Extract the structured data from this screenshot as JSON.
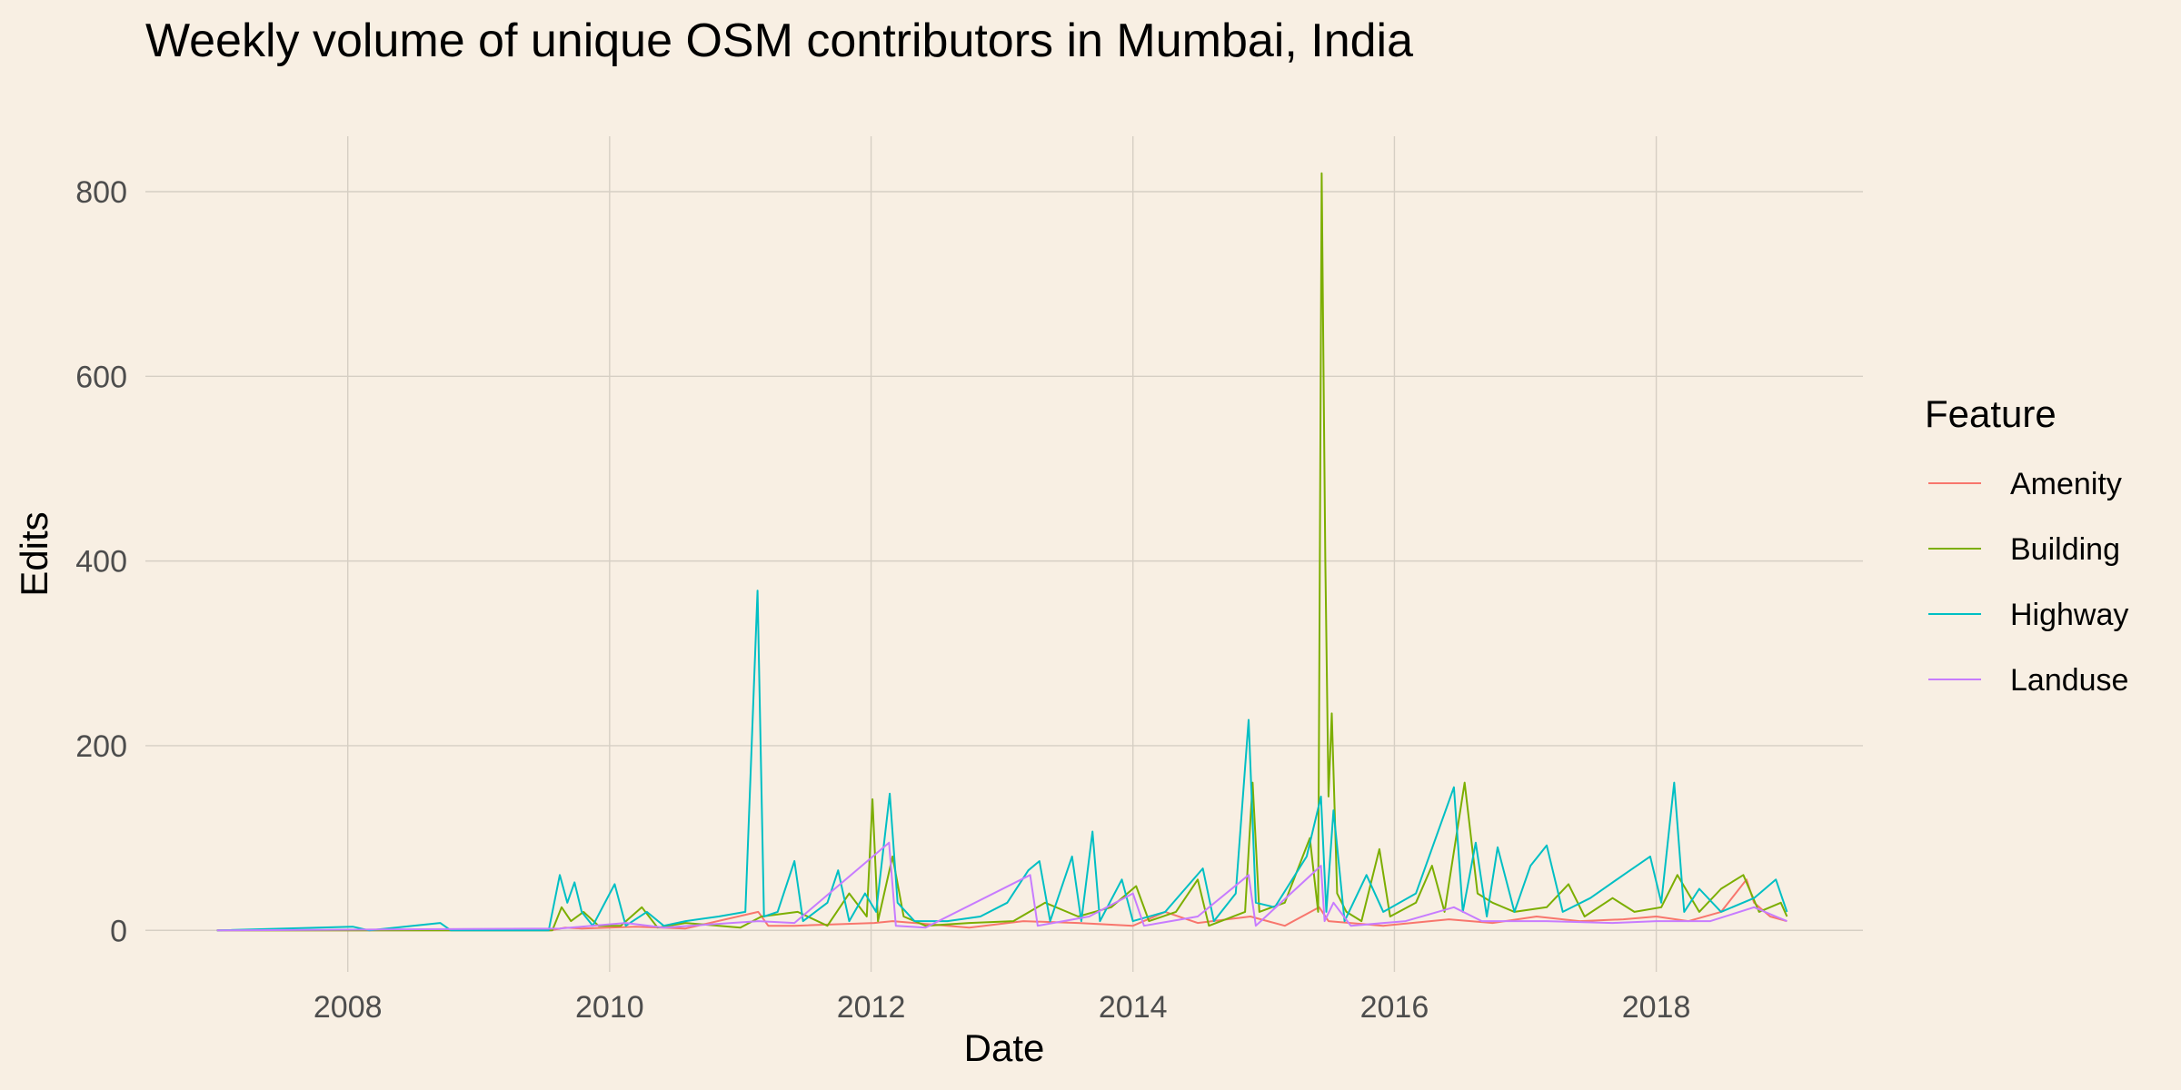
{
  "chart_data": {
    "type": "line",
    "title": "Weekly volume of unique OSM contributors in Mumbai, India",
    "xlabel": "Date",
    "ylabel": "Edits",
    "xlim": [
      "2006-06-15",
      "2019-08-01"
    ],
    "ylim": [
      -45,
      860
    ],
    "x_ticks": [
      "2008-01-01",
      "2010-01-01",
      "2012-01-01",
      "2014-01-01",
      "2016-01-01",
      "2018-01-01"
    ],
    "x_tick_labels": [
      "2008",
      "2010",
      "2012",
      "2014",
      "2016",
      "2018"
    ],
    "y_ticks": [
      0,
      200,
      400,
      600,
      800
    ],
    "grid": true,
    "legend": {
      "title": "Feature",
      "position": "right"
    },
    "series": [
      {
        "name": "Amenity",
        "color": "#F8766D",
        "points": [
          [
            "2007-01-01",
            0
          ],
          [
            "2009-07-20",
            0
          ],
          [
            "2009-08-30",
            3
          ],
          [
            "2009-10-15",
            2
          ],
          [
            "2010-03-15",
            4
          ],
          [
            "2010-08-01",
            2
          ],
          [
            "2011-02-20",
            20
          ],
          [
            "2011-03-20",
            5
          ],
          [
            "2011-06-01",
            5
          ],
          [
            "2012-01-10",
            8
          ],
          [
            "2012-03-01",
            10
          ],
          [
            "2012-10-01",
            3
          ],
          [
            "2013-03-01",
            10
          ],
          [
            "2013-08-01",
            8
          ],
          [
            "2014-01-01",
            5
          ],
          [
            "2014-04-01",
            20
          ],
          [
            "2014-07-01",
            8
          ],
          [
            "2014-11-25",
            15
          ],
          [
            "2015-03-01",
            5
          ],
          [
            "2015-06-05",
            25
          ],
          [
            "2015-07-01",
            10
          ],
          [
            "2015-12-01",
            5
          ],
          [
            "2016-06-01",
            12
          ],
          [
            "2016-10-01",
            8
          ],
          [
            "2017-02-01",
            15
          ],
          [
            "2017-06-01",
            10
          ],
          [
            "2017-10-01",
            12
          ],
          [
            "2018-01-01",
            15
          ],
          [
            "2018-04-01",
            10
          ],
          [
            "2018-07-01",
            20
          ],
          [
            "2018-09-10",
            55
          ],
          [
            "2018-10-01",
            30
          ],
          [
            "2018-11-15",
            15
          ],
          [
            "2019-01-01",
            10
          ]
        ]
      },
      {
        "name": "Building",
        "color": "#7CAE00",
        "points": [
          [
            "2007-01-01",
            0
          ],
          [
            "2009-07-25",
            0
          ],
          [
            "2009-08-20",
            25
          ],
          [
            "2009-09-15",
            10
          ],
          [
            "2009-10-20",
            20
          ],
          [
            "2009-12-01",
            5
          ],
          [
            "2010-02-01",
            5
          ],
          [
            "2010-04-01",
            25
          ],
          [
            "2010-05-15",
            3
          ],
          [
            "2010-08-01",
            8
          ],
          [
            "2011-01-01",
            3
          ],
          [
            "2011-03-01",
            15
          ],
          [
            "2011-06-10",
            20
          ],
          [
            "2011-09-01",
            5
          ],
          [
            "2011-11-01",
            40
          ],
          [
            "2011-12-20",
            15
          ],
          [
            "2012-01-05",
            142
          ],
          [
            "2012-01-20",
            10
          ],
          [
            "2012-03-01",
            80
          ],
          [
            "2012-04-01",
            15
          ],
          [
            "2012-06-01",
            5
          ],
          [
            "2012-10-01",
            8
          ],
          [
            "2013-02-01",
            10
          ],
          [
            "2013-05-01",
            30
          ],
          [
            "2013-08-01",
            15
          ],
          [
            "2013-11-01",
            25
          ],
          [
            "2014-01-10",
            48
          ],
          [
            "2014-02-15",
            10
          ],
          [
            "2014-05-01",
            20
          ],
          [
            "2014-07-01",
            55
          ],
          [
            "2014-08-01",
            5
          ],
          [
            "2014-11-10",
            20
          ],
          [
            "2014-12-01",
            160
          ],
          [
            "2014-12-20",
            20
          ],
          [
            "2015-03-01",
            30
          ],
          [
            "2015-05-10",
            100
          ],
          [
            "2015-06-02",
            20
          ],
          [
            "2015-06-12",
            820
          ],
          [
            "2015-06-22",
            400
          ],
          [
            "2015-07-01",
            145
          ],
          [
            "2015-07-10",
            235
          ],
          [
            "2015-07-25",
            40
          ],
          [
            "2015-08-20",
            20
          ],
          [
            "2015-10-01",
            10
          ],
          [
            "2015-11-20",
            88
          ],
          [
            "2015-12-20",
            15
          ],
          [
            "2016-03-01",
            30
          ],
          [
            "2016-04-15",
            70
          ],
          [
            "2016-05-20",
            20
          ],
          [
            "2016-07-15",
            160
          ],
          [
            "2016-08-20",
            40
          ],
          [
            "2016-10-01",
            30
          ],
          [
            "2016-12-01",
            20
          ],
          [
            "2017-03-01",
            25
          ],
          [
            "2017-05-01",
            50
          ],
          [
            "2017-06-15",
            15
          ],
          [
            "2017-09-01",
            35
          ],
          [
            "2017-11-01",
            20
          ],
          [
            "2018-01-15",
            25
          ],
          [
            "2018-03-01",
            60
          ],
          [
            "2018-05-01",
            20
          ],
          [
            "2018-07-01",
            45
          ],
          [
            "2018-09-01",
            60
          ],
          [
            "2018-10-15",
            20
          ],
          [
            "2018-12-15",
            30
          ],
          [
            "2019-01-01",
            15
          ]
        ]
      },
      {
        "name": "Highway",
        "color": "#00BFC4",
        "points": [
          [
            "2007-01-01",
            0
          ],
          [
            "2008-01-15",
            4
          ],
          [
            "2008-03-01",
            0
          ],
          [
            "2008-09-15",
            8
          ],
          [
            "2008-10-15",
            0
          ],
          [
            "2009-07-15",
            0
          ],
          [
            "2009-08-15",
            60
          ],
          [
            "2009-09-05",
            30
          ],
          [
            "2009-09-25",
            52
          ],
          [
            "2009-10-15",
            20
          ],
          [
            "2009-11-15",
            5
          ],
          [
            "2010-01-15",
            50
          ],
          [
            "2010-02-15",
            5
          ],
          [
            "2010-04-15",
            20
          ],
          [
            "2010-06-01",
            5
          ],
          [
            "2010-08-01",
            10
          ],
          [
            "2010-11-01",
            15
          ],
          [
            "2011-01-15",
            20
          ],
          [
            "2011-02-18",
            368
          ],
          [
            "2011-03-08",
            15
          ],
          [
            "2011-04-15",
            20
          ],
          [
            "2011-06-01",
            75
          ],
          [
            "2011-06-25",
            10
          ],
          [
            "2011-09-01",
            30
          ],
          [
            "2011-10-01",
            65
          ],
          [
            "2011-11-01",
            10
          ],
          [
            "2011-12-15",
            40
          ],
          [
            "2012-01-15",
            20
          ],
          [
            "2012-02-22",
            148
          ],
          [
            "2012-03-15",
            30
          ],
          [
            "2012-05-01",
            10
          ],
          [
            "2012-08-01",
            10
          ],
          [
            "2012-11-01",
            15
          ],
          [
            "2013-01-15",
            30
          ],
          [
            "2013-03-15",
            65
          ],
          [
            "2013-04-15",
            75
          ],
          [
            "2013-05-15",
            10
          ],
          [
            "2013-07-15",
            80
          ],
          [
            "2013-08-10",
            10
          ],
          [
            "2013-09-10",
            107
          ],
          [
            "2013-10-01",
            10
          ],
          [
            "2013-12-01",
            55
          ],
          [
            "2014-01-01",
            10
          ],
          [
            "2014-04-01",
            20
          ],
          [
            "2014-07-15",
            67
          ],
          [
            "2014-08-15",
            10
          ],
          [
            "2014-10-15",
            40
          ],
          [
            "2014-11-20",
            228
          ],
          [
            "2014-12-10",
            30
          ],
          [
            "2015-02-01",
            25
          ],
          [
            "2015-05-01",
            80
          ],
          [
            "2015-06-10",
            145
          ],
          [
            "2015-06-25",
            20
          ],
          [
            "2015-07-15",
            130
          ],
          [
            "2015-08-15",
            10
          ],
          [
            "2015-10-15",
            60
          ],
          [
            "2015-12-01",
            20
          ],
          [
            "2016-03-01",
            40
          ],
          [
            "2016-06-15",
            155
          ],
          [
            "2016-07-10",
            20
          ],
          [
            "2016-08-15",
            95
          ],
          [
            "2016-09-15",
            15
          ],
          [
            "2016-10-15",
            90
          ],
          [
            "2016-12-01",
            20
          ],
          [
            "2017-01-15",
            70
          ],
          [
            "2017-03-01",
            92
          ],
          [
            "2017-04-15",
            20
          ],
          [
            "2017-07-01",
            35
          ],
          [
            "2017-10-01",
            60
          ],
          [
            "2017-12-15",
            80
          ],
          [
            "2018-01-15",
            30
          ],
          [
            "2018-02-20",
            160
          ],
          [
            "2018-03-20",
            20
          ],
          [
            "2018-05-01",
            45
          ],
          [
            "2018-07-01",
            20
          ],
          [
            "2018-10-01",
            35
          ],
          [
            "2018-12-01",
            55
          ],
          [
            "2019-01-01",
            20
          ]
        ]
      },
      {
        "name": "Landuse",
        "color": "#C77CFF",
        "points": [
          [
            "2007-01-01",
            0
          ],
          [
            "2009-08-15",
            2
          ],
          [
            "2010-02-15",
            8
          ],
          [
            "2010-06-01",
            3
          ],
          [
            "2011-02-20",
            10
          ],
          [
            "2011-06-01",
            8
          ],
          [
            "2012-02-20",
            95
          ],
          [
            "2012-03-10",
            5
          ],
          [
            "2012-06-01",
            3
          ],
          [
            "2013-03-20",
            60
          ],
          [
            "2013-04-10",
            5
          ],
          [
            "2013-09-01",
            15
          ],
          [
            "2014-01-01",
            40
          ],
          [
            "2014-02-01",
            5
          ],
          [
            "2014-07-01",
            15
          ],
          [
            "2014-11-20",
            60
          ],
          [
            "2014-12-10",
            5
          ],
          [
            "2015-06-10",
            70
          ],
          [
            "2015-06-20",
            10
          ],
          [
            "2015-07-15",
            30
          ],
          [
            "2015-09-01",
            5
          ],
          [
            "2016-02-01",
            10
          ],
          [
            "2016-06-15",
            25
          ],
          [
            "2016-09-01",
            10
          ],
          [
            "2017-03-01",
            10
          ],
          [
            "2017-09-01",
            8
          ],
          [
            "2018-01-01",
            10
          ],
          [
            "2018-06-01",
            10
          ],
          [
            "2018-10-01",
            25
          ],
          [
            "2018-12-01",
            15
          ],
          [
            "2019-01-01",
            10
          ]
        ]
      }
    ]
  }
}
